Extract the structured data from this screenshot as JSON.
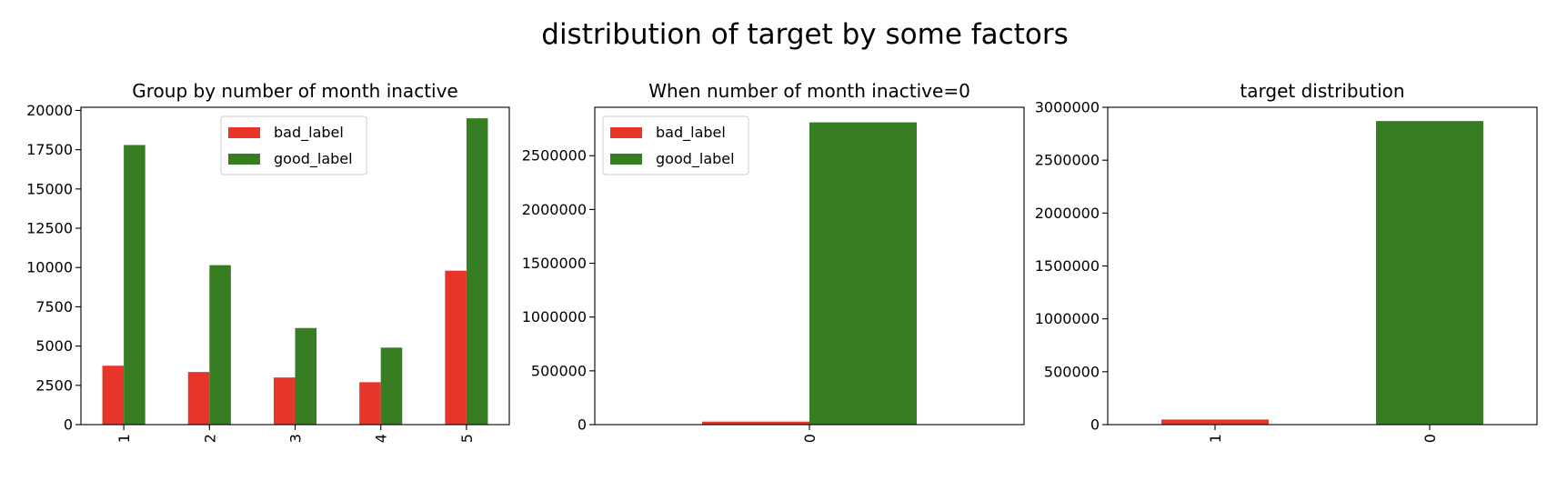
{
  "figure": {
    "title": "distribution of target by some factors"
  },
  "colors": {
    "bad_label": "#e8352a",
    "good_label": "#377d22"
  },
  "chart_data": [
    {
      "type": "bar",
      "title": "Group by number of month inactive",
      "categories": [
        "1",
        "2",
        "3",
        "4",
        "5"
      ],
      "series": [
        {
          "name": "bad_label",
          "values": [
            3750,
            3350,
            3000,
            2700,
            9800
          ]
        },
        {
          "name": "good_label",
          "values": [
            17800,
            10150,
            6150,
            4900,
            19500
          ]
        }
      ],
      "ylim": [
        0,
        20200
      ],
      "yticks": [
        0,
        2500,
        5000,
        7500,
        10000,
        12500,
        15000,
        17500,
        20000
      ],
      "ytick_labels": [
        "0",
        "2500",
        "5000",
        "7500",
        "10000",
        "12500",
        "15000",
        "17500",
        "20000"
      ],
      "legend": "top-center",
      "grid": false
    },
    {
      "type": "bar",
      "title": "When number of month inactive=0",
      "categories": [
        "0"
      ],
      "series": [
        {
          "name": "bad_label",
          "values": [
            28000
          ]
        },
        {
          "name": "good_label",
          "values": [
            2810000
          ]
        }
      ],
      "ylim": [
        0,
        2950000
      ],
      "yticks": [
        0,
        500000,
        1000000,
        1500000,
        2000000,
        2500000
      ],
      "ytick_labels": [
        "0",
        "500000",
        "1000000",
        "1500000",
        "2000000",
        "2500000"
      ],
      "legend": "top-left",
      "grid": false
    },
    {
      "type": "bar",
      "title": "target distribution",
      "categories": [
        "1",
        "0"
      ],
      "series": [
        {
          "name": "",
          "values": [
            48000,
            2870000
          ]
        }
      ],
      "bar_colors": [
        "#e8352a",
        "#377d22"
      ],
      "ylim": [
        0,
        3000000
      ],
      "yticks": [
        0,
        500000,
        1000000,
        1500000,
        2000000,
        2500000,
        3000000
      ],
      "ytick_labels": [
        "0",
        "500000",
        "1000000",
        "1500000",
        "2000000",
        "2500000",
        "3000000"
      ],
      "legend": "none",
      "grid": false
    }
  ]
}
